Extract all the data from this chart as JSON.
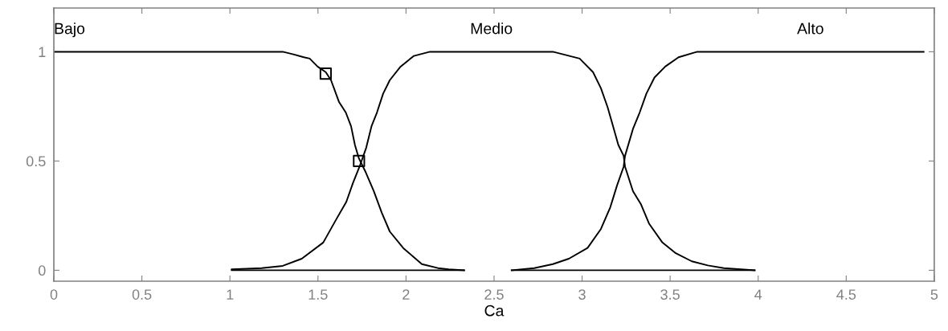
{
  "chart_data": {
    "type": "line",
    "xlabel": "Ca",
    "xlim": [
      0,
      5
    ],
    "ylim": [
      -0.05,
      1.2
    ],
    "xticks": [
      0,
      0.5,
      1,
      1.5,
      2,
      2.5,
      3,
      3.5,
      4,
      4.5,
      5
    ],
    "yticks": [
      0,
      0.5,
      1
    ],
    "grid": false,
    "series": [
      {
        "name": "Bajo",
        "color": "#000000",
        "x": [
          0,
          1.3,
          1.36,
          1.42,
          1.453,
          1.498,
          1.544,
          1.574,
          1.619,
          1.658,
          1.688,
          1.71,
          1.733,
          1.771,
          1.817,
          1.862,
          1.908,
          1.984,
          2.09,
          2.181,
          2.242,
          2.33
        ],
        "values": [
          1,
          1,
          0.988,
          0.975,
          0.969,
          0.932,
          0.907,
          0.87,
          0.771,
          0.722,
          0.659,
          0.573,
          0.511,
          0.449,
          0.362,
          0.264,
          0.177,
          0.102,
          0.028,
          0.01,
          0.004,
          0
        ]
      },
      {
        "name": "Medio",
        "color": "#000000",
        "x": [
          1.01,
          1.18,
          1.3,
          1.408,
          1.53,
          1.608,
          1.661,
          1.699,
          1.736,
          1.774,
          1.804,
          1.835,
          1.87,
          1.908,
          1.969,
          2.045,
          2.136,
          2.834,
          2.986,
          3.062,
          3.107,
          3.145,
          3.176,
          3.206,
          3.236,
          3.244,
          3.289,
          3.335,
          3.38,
          3.456,
          3.532,
          3.623,
          3.714,
          3.805,
          3.98
        ],
        "values": [
          0.004,
          0.01,
          0.02,
          0.053,
          0.127,
          0.239,
          0.313,
          0.4,
          0.474,
          0.561,
          0.659,
          0.722,
          0.808,
          0.87,
          0.932,
          0.981,
          1,
          1,
          0.969,
          0.907,
          0.833,
          0.746,
          0.659,
          0.573,
          0.524,
          0.474,
          0.362,
          0.301,
          0.214,
          0.127,
          0.078,
          0.041,
          0.022,
          0.01,
          0
        ]
      },
      {
        "name": "Alto",
        "color": "#000000",
        "x": [
          2.6,
          2.728,
          2.834,
          2.925,
          3.031,
          3.107,
          3.16,
          3.198,
          3.236,
          3.244,
          3.289,
          3.327,
          3.365,
          3.411,
          3.472,
          3.548,
          3.654,
          4.94
        ],
        "values": [
          0,
          0.01,
          0.028,
          0.053,
          0.102,
          0.189,
          0.288,
          0.387,
          0.474,
          0.524,
          0.647,
          0.722,
          0.808,
          0.882,
          0.932,
          0.975,
          1,
          1
        ]
      },
      {
        "color": "#000000",
        "x": [
          1.01,
          2.33
        ],
        "values": [
          0,
          0
        ]
      },
      {
        "color": "#000000",
        "x": [
          2.6,
          3.98
        ],
        "values": [
          0,
          0
        ]
      },
      {
        "type": "scatter",
        "marker": "square",
        "color": "#000000",
        "x": [
          1.544,
          1.733
        ],
        "values": [
          0.9,
          0.5
        ]
      }
    ]
  }
}
